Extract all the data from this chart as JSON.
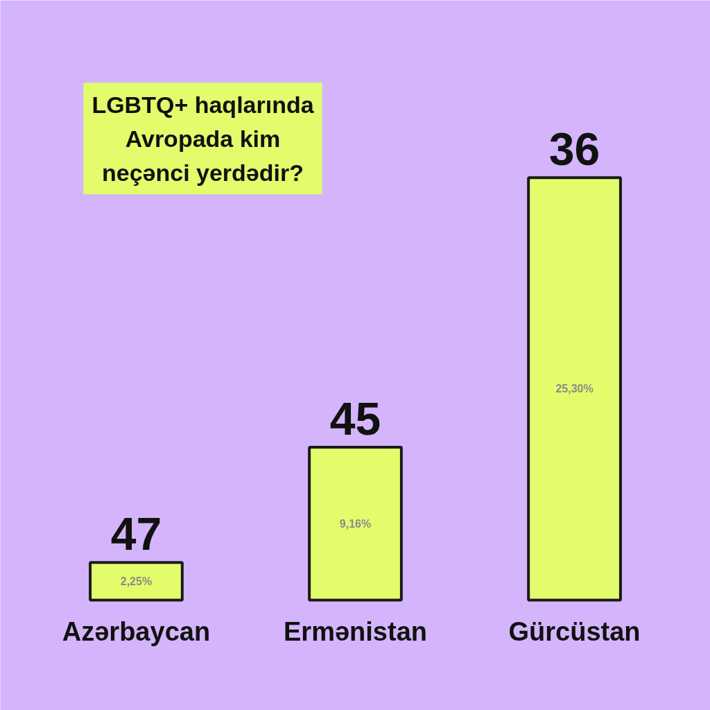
{
  "chart_data": {
    "type": "bar",
    "title": "LGBTQ+ haqlarında Avropada kim neçənci yerdədir?",
    "categories": [
      "Azərbaycan",
      "Ermənistan",
      "Gürcüstan"
    ],
    "values": [
      2.25,
      9.16,
      25.3
    ],
    "color": "#e2fc6c",
    "value_labels": [
      "2,25%",
      "9,16%",
      "25,30%"
    ],
    "annotations": [
      "47",
      "45",
      "36"
    ],
    "grid": false
  }
}
